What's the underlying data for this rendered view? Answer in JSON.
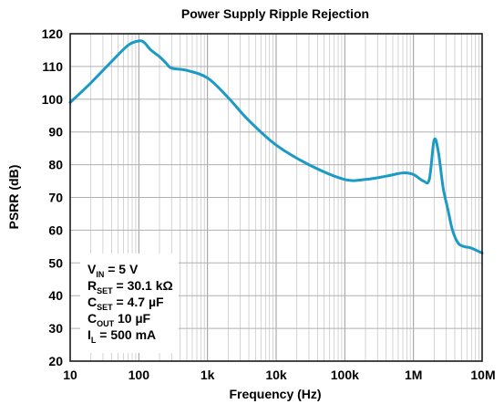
{
  "chart_data": {
    "type": "line",
    "title": "Power Supply Ripple Rejection",
    "xlabel": "Frequency (Hz)",
    "ylabel": "PSRR (dB)",
    "x_scale": "log",
    "xlim": [
      10,
      10000000
    ],
    "ylim": [
      20,
      120
    ],
    "grid": true,
    "x_ticks": [
      10,
      100,
      1000,
      10000,
      100000,
      1000000,
      10000000
    ],
    "x_tick_labels": [
      "10",
      "100",
      "1k",
      "10k",
      "100k",
      "1M",
      "10M"
    ],
    "y_ticks": [
      20,
      30,
      40,
      50,
      60,
      70,
      80,
      90,
      100,
      110,
      120
    ],
    "y_tick_labels": [
      "20",
      "30",
      "40",
      "50",
      "60",
      "70",
      "80",
      "90",
      "100",
      "110",
      "120"
    ],
    "series": [
      {
        "color": "#1b9ac5",
        "x": [
          10,
          20,
          40,
          70,
          100,
          120,
          150,
          200,
          250,
          300,
          500,
          1000,
          2000,
          4000,
          10000,
          30000,
          100000,
          200000,
          400000,
          700000,
          1000000,
          1400000,
          1700000,
          2000000,
          2300000,
          2700000,
          3200000,
          3700000,
          4500000,
          5500000,
          7000000,
          10000000
        ],
        "y": [
          99,
          105,
          111.5,
          116.5,
          117.8,
          117.3,
          115,
          113,
          111,
          109.5,
          108.8,
          106.5,
          100.5,
          93.5,
          86,
          80,
          75.5,
          75.5,
          76.5,
          77.5,
          77,
          75,
          75.5,
          87.5,
          84,
          73,
          66,
          60,
          56,
          55,
          54.5,
          53
        ]
      }
    ],
    "annotation": {
      "lines": [
        {
          "main": "V",
          "sub": "IN",
          "rest": " = 5 V"
        },
        {
          "main": "R",
          "sub": "SET",
          "rest": " = 30.1 kΩ"
        },
        {
          "main": "C",
          "sub": "SET",
          "rest": " = 4.7 µF"
        },
        {
          "main": "C",
          "sub": "OUT",
          "rest": " 10 µF"
        },
        {
          "main": "I",
          "sub": "L",
          "rest": " = 500 mA"
        }
      ]
    }
  }
}
